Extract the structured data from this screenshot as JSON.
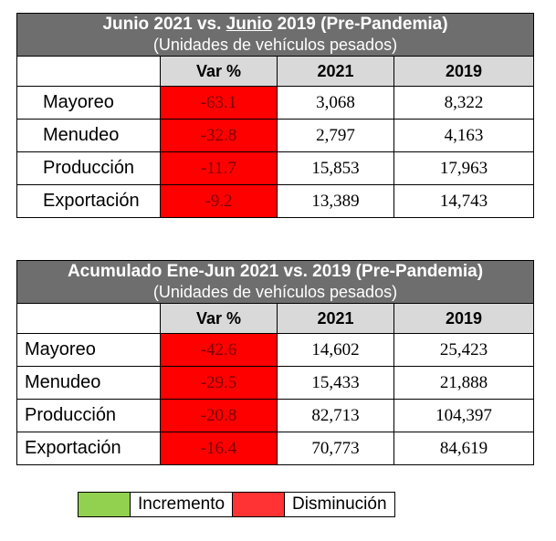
{
  "table1": {
    "title_pre": "Junio 2021 vs. ",
    "title_underlined": "Junio",
    "title_post": " 2019 (Pre-Pandemia)",
    "subtitle": "(Unidades de vehículos pesados)",
    "col_var": "Var %",
    "col_2021": "2021",
    "col_2019": "2019",
    "rows": [
      {
        "label": "Mayoreo",
        "var": "-63.1",
        "y2021": "3,068",
        "y2019": "8,322"
      },
      {
        "label": "Menudeo",
        "var": "-32.8",
        "y2021": "2,797",
        "y2019": "4,163"
      },
      {
        "label": "Producción",
        "var": "-11.7",
        "y2021": "15,853",
        "y2019": "17,963"
      },
      {
        "label": "Exportación",
        "var": "-9.2",
        "y2021": "13,389",
        "y2019": "14,743"
      }
    ]
  },
  "table2": {
    "title": "Acumulado Ene-Jun 2021 vs. 2019 (Pre-Pandemia)",
    "subtitle": "(Unidades de vehículos pesados)",
    "col_var": "Var %",
    "col_2021": "2021",
    "col_2019": "2019",
    "rows": [
      {
        "label": "Mayoreo",
        "var": "-42.6",
        "y2021": "14,602",
        "y2019": "25,423"
      },
      {
        "label": "Menudeo",
        "var": "-29.5",
        "y2021": "15,433",
        "y2019": "21,888"
      },
      {
        "label": "Producción",
        "var": "-20.8",
        "y2021": "82,713",
        "y2019": "104,397"
      },
      {
        "label": "Exportación",
        "var": "-16.4",
        "y2021": "70,773",
        "y2019": "84,619"
      }
    ]
  },
  "legend": {
    "increase_label": "Incremento",
    "increase_color": "#92d050",
    "decrease_label": "Disminución",
    "decrease_color": "#ff3333"
  }
}
